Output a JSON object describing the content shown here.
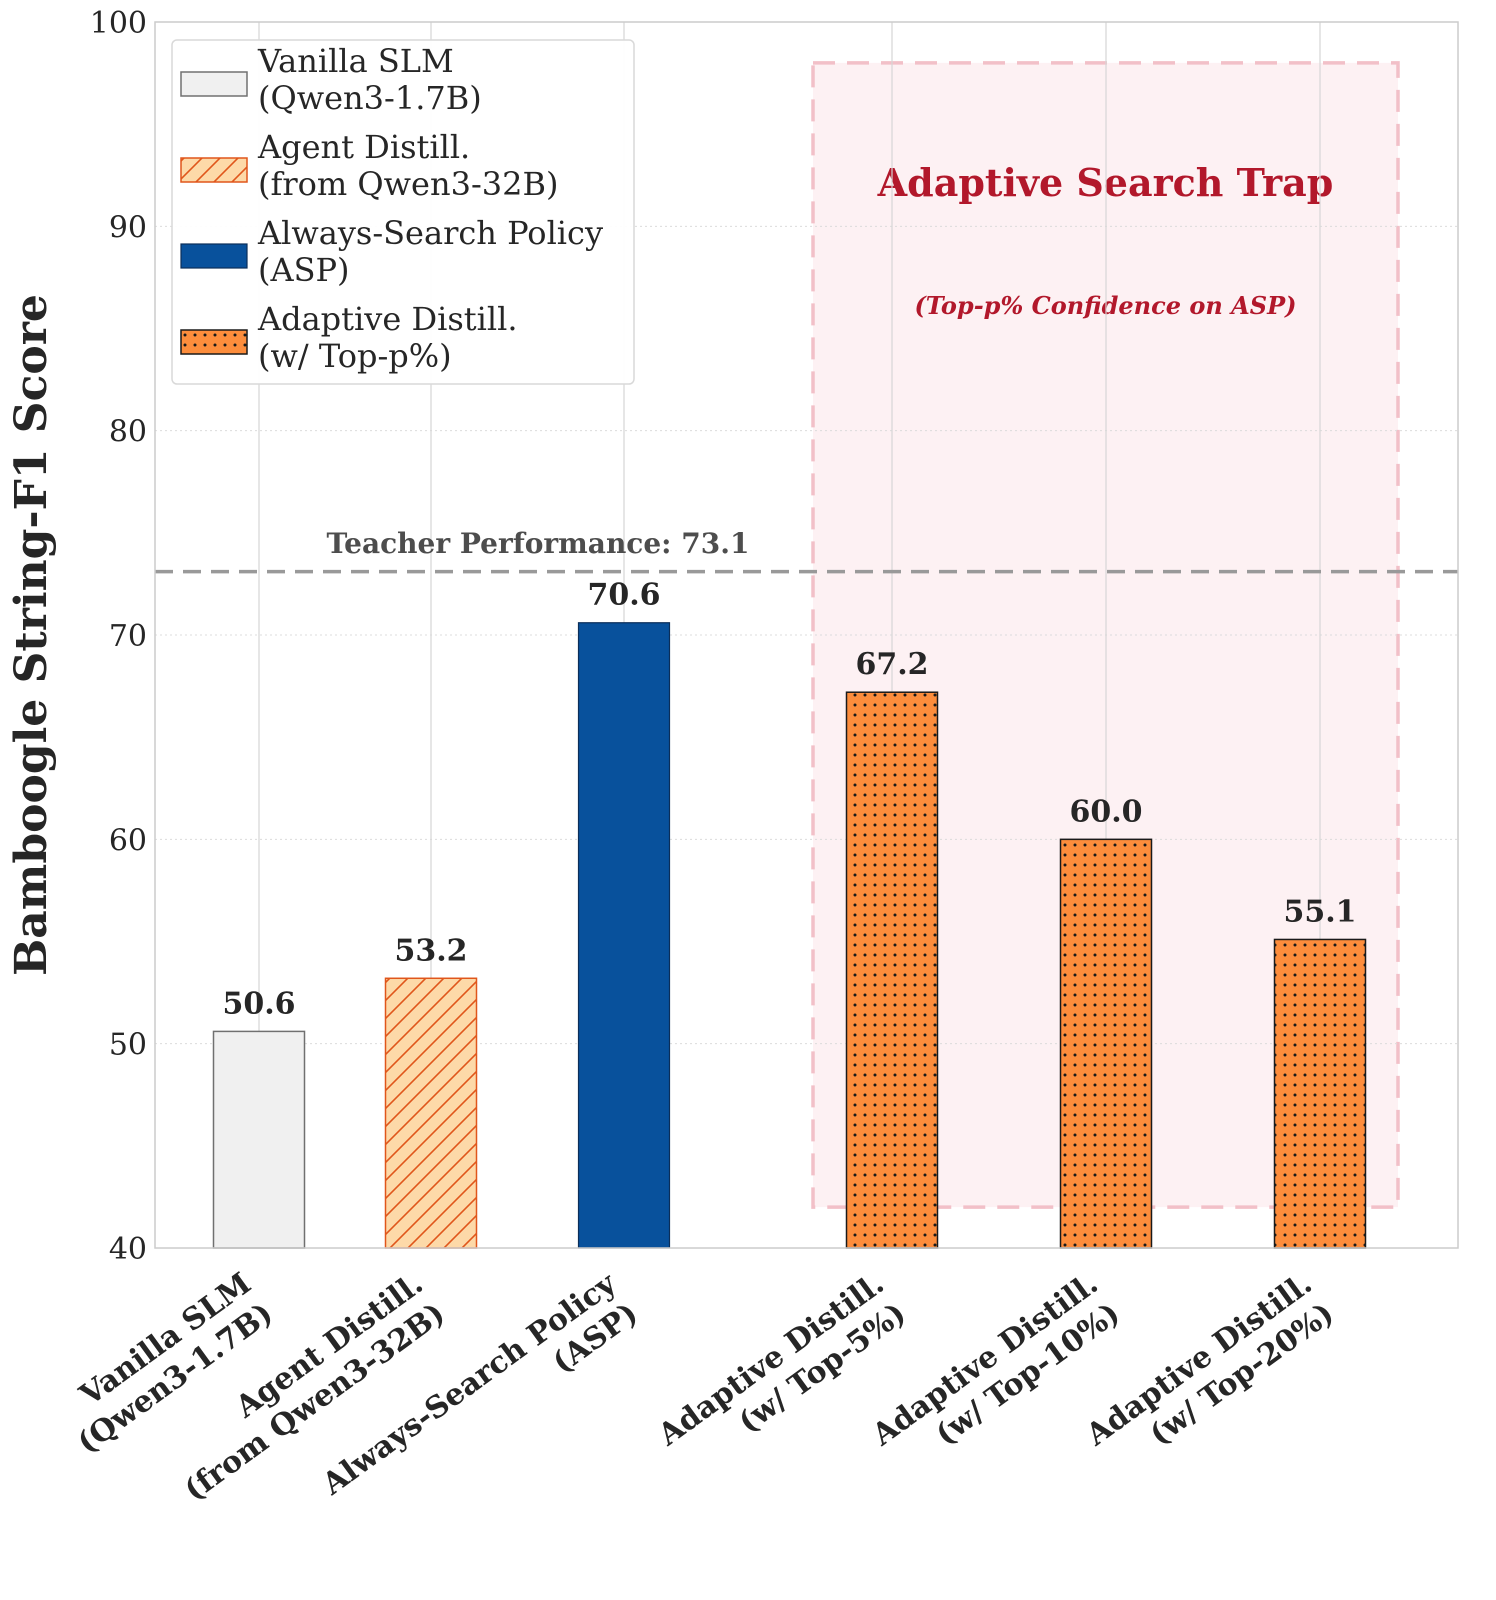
{
  "chart_data": {
    "type": "bar",
    "ylabel": "Bamboogle String-F1 Score",
    "xlabel": "",
    "ylim": [
      40,
      100
    ],
    "yticks": [
      40,
      50,
      60,
      70,
      80,
      90,
      100
    ],
    "grid": true,
    "categories": [
      [
        "Vanilla SLM",
        "(Qwen3-1.7B)"
      ],
      [
        "Agent Distill.",
        "(from Qwen3-32B)"
      ],
      [
        "Always-Search Policy",
        "(ASP)"
      ],
      [
        "Adaptive Distill.",
        "(w/ Top-5%)"
      ],
      [
        "Adaptive Distill.",
        "(w/ Top-10%)"
      ],
      [
        "Adaptive Distill.",
        "(w/ Top-20%)"
      ]
    ],
    "values": [
      50.6,
      53.2,
      70.6,
      67.2,
      60.0,
      55.1
    ],
    "value_labels": [
      "50.6",
      "53.2",
      "70.6",
      "67.2",
      "60.0",
      "55.1"
    ],
    "bar_styles": [
      "vanilla",
      "agent",
      "asp",
      "adaptive",
      "adaptive",
      "adaptive"
    ],
    "reference_line": {
      "value": 73.1,
      "label": "Teacher Performance: 73.1"
    },
    "highlight_region": {
      "title": "Adaptive Search Trap",
      "subtitle": "(Top-p% Confidence on ASP)",
      "y_range": [
        42,
        98
      ],
      "covers_categories": [
        3,
        4,
        5
      ]
    },
    "legend": {
      "placement": "top-left",
      "entries": [
        {
          "style": "vanilla",
          "lines": [
            "Vanilla SLM",
            "(Qwen3-1.7B)"
          ]
        },
        {
          "style": "agent",
          "lines": [
            "Agent Distill.",
            "(from Qwen3-32B)"
          ]
        },
        {
          "style": "asp",
          "lines": [
            "Always-Search Policy",
            "(ASP)"
          ]
        },
        {
          "style": "adaptive",
          "lines": [
            "Adaptive Distill.",
            "(w/ Top-p%)"
          ]
        }
      ]
    },
    "colors": {
      "vanilla_fill": "#f0f0f0",
      "vanilla_edge": "#707070",
      "agent_fill": "#fdd9a8",
      "agent_edge": "#e0561b",
      "asp_fill": "#08519c",
      "asp_edge": "#0b2e59",
      "adaptive_fill": "#fd8d3c",
      "adaptive_edge": "#1a1a1a",
      "trap_fill": "#fdf1f3",
      "trap_edge": "#f2c0c8",
      "trap_text": "#b2182b",
      "teacher_line": "#999999"
    }
  }
}
